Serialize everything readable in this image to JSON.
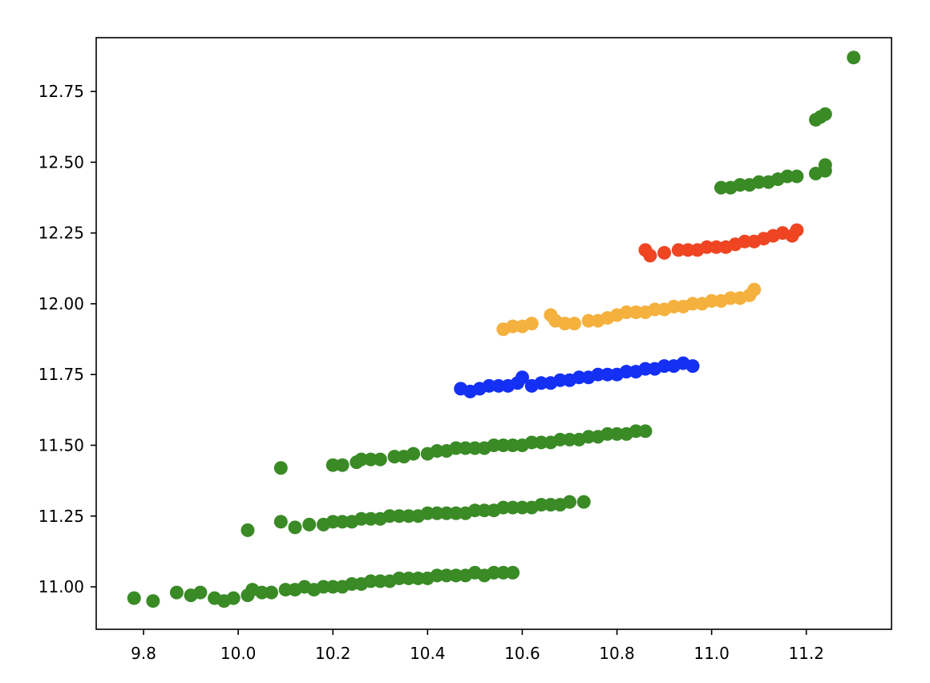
{
  "chart_data": {
    "type": "scatter",
    "title": "",
    "xlabel": "",
    "ylabel": "",
    "xlim": [
      9.7,
      11.38
    ],
    "ylim": [
      10.85,
      12.94
    ],
    "grid": false,
    "xticks": [
      9.8,
      10.0,
      10.2,
      10.4,
      10.6,
      10.8,
      11.0,
      11.2
    ],
    "xtick_labels": [
      "9.8",
      "10.0",
      "10.2",
      "10.4",
      "10.6",
      "10.8",
      "11.0",
      "11.2"
    ],
    "yticks": [
      11.0,
      11.25,
      11.5,
      11.75,
      12.0,
      12.25,
      12.5,
      12.75
    ],
    "ytick_labels": [
      "11.00",
      "11.25",
      "11.50",
      "11.75",
      "12.00",
      "12.25",
      "12.50",
      "12.75"
    ],
    "series": [
      {
        "color": "#3a8a26",
        "points": [
          [
            9.78,
            10.96
          ],
          [
            9.82,
            10.95
          ],
          [
            9.87,
            10.98
          ],
          [
            9.9,
            10.97
          ],
          [
            9.92,
            10.98
          ],
          [
            9.95,
            10.96
          ],
          [
            9.97,
            10.95
          ],
          [
            9.99,
            10.96
          ],
          [
            10.02,
            10.97
          ],
          [
            10.03,
            10.99
          ],
          [
            10.05,
            10.98
          ],
          [
            10.07,
            10.98
          ],
          [
            10.1,
            10.99
          ],
          [
            10.12,
            10.99
          ],
          [
            10.14,
            11.0
          ],
          [
            10.16,
            10.99
          ],
          [
            10.18,
            11.0
          ],
          [
            10.2,
            11.0
          ],
          [
            10.22,
            11.0
          ],
          [
            10.24,
            11.01
          ],
          [
            10.26,
            11.01
          ],
          [
            10.28,
            11.02
          ],
          [
            10.3,
            11.02
          ],
          [
            10.32,
            11.02
          ],
          [
            10.34,
            11.03
          ],
          [
            10.36,
            11.03
          ],
          [
            10.38,
            11.03
          ],
          [
            10.4,
            11.03
          ],
          [
            10.42,
            11.04
          ],
          [
            10.44,
            11.04
          ],
          [
            10.46,
            11.04
          ],
          [
            10.48,
            11.04
          ],
          [
            10.5,
            11.05
          ],
          [
            10.52,
            11.04
          ],
          [
            10.54,
            11.05
          ],
          [
            10.56,
            11.05
          ],
          [
            10.58,
            11.05
          ],
          [
            10.02,
            11.2
          ],
          [
            10.09,
            11.23
          ],
          [
            10.12,
            11.21
          ],
          [
            10.15,
            11.22
          ],
          [
            10.18,
            11.22
          ],
          [
            10.2,
            11.23
          ],
          [
            10.22,
            11.23
          ],
          [
            10.24,
            11.23
          ],
          [
            10.26,
            11.24
          ],
          [
            10.28,
            11.24
          ],
          [
            10.3,
            11.24
          ],
          [
            10.32,
            11.25
          ],
          [
            10.34,
            11.25
          ],
          [
            10.36,
            11.25
          ],
          [
            10.38,
            11.25
          ],
          [
            10.4,
            11.26
          ],
          [
            10.42,
            11.26
          ],
          [
            10.44,
            11.26
          ],
          [
            10.46,
            11.26
          ],
          [
            10.48,
            11.26
          ],
          [
            10.5,
            11.27
          ],
          [
            10.52,
            11.27
          ],
          [
            10.54,
            11.27
          ],
          [
            10.56,
            11.28
          ],
          [
            10.58,
            11.28
          ],
          [
            10.6,
            11.28
          ],
          [
            10.62,
            11.28
          ],
          [
            10.64,
            11.29
          ],
          [
            10.66,
            11.29
          ],
          [
            10.68,
            11.29
          ],
          [
            10.7,
            11.3
          ],
          [
            10.73,
            11.3
          ],
          [
            10.09,
            11.42
          ],
          [
            10.2,
            11.43
          ],
          [
            10.22,
            11.43
          ],
          [
            10.25,
            11.44
          ],
          [
            10.26,
            11.45
          ],
          [
            10.28,
            11.45
          ],
          [
            10.3,
            11.45
          ],
          [
            10.33,
            11.46
          ],
          [
            10.35,
            11.46
          ],
          [
            10.37,
            11.47
          ],
          [
            10.4,
            11.47
          ],
          [
            10.42,
            11.48
          ],
          [
            10.44,
            11.48
          ],
          [
            10.46,
            11.49
          ],
          [
            10.48,
            11.49
          ],
          [
            10.5,
            11.49
          ],
          [
            10.52,
            11.49
          ],
          [
            10.54,
            11.5
          ],
          [
            10.56,
            11.5
          ],
          [
            10.58,
            11.5
          ],
          [
            10.6,
            11.5
          ],
          [
            10.62,
            11.51
          ],
          [
            10.64,
            11.51
          ],
          [
            10.66,
            11.51
          ],
          [
            10.68,
            11.52
          ],
          [
            10.7,
            11.52
          ],
          [
            10.72,
            11.52
          ],
          [
            10.74,
            11.53
          ],
          [
            10.76,
            11.53
          ],
          [
            10.78,
            11.54
          ],
          [
            10.8,
            11.54
          ],
          [
            10.82,
            11.54
          ],
          [
            10.84,
            11.55
          ],
          [
            10.86,
            11.55
          ],
          [
            11.02,
            12.41
          ],
          [
            11.04,
            12.41
          ],
          [
            11.06,
            12.42
          ],
          [
            11.08,
            12.42
          ],
          [
            11.1,
            12.43
          ],
          [
            11.12,
            12.43
          ],
          [
            11.14,
            12.44
          ],
          [
            11.16,
            12.45
          ],
          [
            11.18,
            12.45
          ],
          [
            11.22,
            12.46
          ],
          [
            11.24,
            12.47
          ],
          [
            11.24,
            12.49
          ],
          [
            11.22,
            12.65
          ],
          [
            11.23,
            12.66
          ],
          [
            11.24,
            12.67
          ],
          [
            11.3,
            12.87
          ]
        ]
      },
      {
        "color": "#1430f5",
        "points": [
          [
            10.47,
            11.7
          ],
          [
            10.49,
            11.69
          ],
          [
            10.51,
            11.7
          ],
          [
            10.53,
            11.71
          ],
          [
            10.55,
            11.71
          ],
          [
            10.57,
            11.71
          ],
          [
            10.59,
            11.72
          ],
          [
            10.6,
            11.74
          ],
          [
            10.62,
            11.71
          ],
          [
            10.64,
            11.72
          ],
          [
            10.66,
            11.72
          ],
          [
            10.68,
            11.73
          ],
          [
            10.7,
            11.73
          ],
          [
            10.72,
            11.74
          ],
          [
            10.74,
            11.74
          ],
          [
            10.76,
            11.75
          ],
          [
            10.78,
            11.75
          ],
          [
            10.8,
            11.75
          ],
          [
            10.82,
            11.76
          ],
          [
            10.84,
            11.76
          ],
          [
            10.86,
            11.77
          ],
          [
            10.88,
            11.77
          ],
          [
            10.9,
            11.78
          ],
          [
            10.92,
            11.78
          ],
          [
            10.94,
            11.79
          ],
          [
            10.96,
            11.78
          ]
        ]
      },
      {
        "color": "#f5b13d",
        "points": [
          [
            10.56,
            11.91
          ],
          [
            10.58,
            11.92
          ],
          [
            10.6,
            11.92
          ],
          [
            10.62,
            11.93
          ],
          [
            10.66,
            11.96
          ],
          [
            10.67,
            11.94
          ],
          [
            10.69,
            11.93
          ],
          [
            10.71,
            11.93
          ],
          [
            10.74,
            11.94
          ],
          [
            10.76,
            11.94
          ],
          [
            10.78,
            11.95
          ],
          [
            10.8,
            11.96
          ],
          [
            10.82,
            11.97
          ],
          [
            10.84,
            11.97
          ],
          [
            10.86,
            11.97
          ],
          [
            10.88,
            11.98
          ],
          [
            10.9,
            11.98
          ],
          [
            10.92,
            11.99
          ],
          [
            10.94,
            11.99
          ],
          [
            10.96,
            12.0
          ],
          [
            10.98,
            12.0
          ],
          [
            11.0,
            12.01
          ],
          [
            11.02,
            12.01
          ],
          [
            11.04,
            12.02
          ],
          [
            11.06,
            12.02
          ],
          [
            11.08,
            12.03
          ],
          [
            11.09,
            12.05
          ]
        ]
      },
      {
        "color": "#ef4523",
        "points": [
          [
            10.86,
            12.19
          ],
          [
            10.87,
            12.17
          ],
          [
            10.9,
            12.18
          ],
          [
            10.93,
            12.19
          ],
          [
            10.95,
            12.19
          ],
          [
            10.97,
            12.19
          ],
          [
            10.99,
            12.2
          ],
          [
            11.01,
            12.2
          ],
          [
            11.03,
            12.2
          ],
          [
            11.05,
            12.21
          ],
          [
            11.07,
            12.22
          ],
          [
            11.09,
            12.22
          ],
          [
            11.11,
            12.23
          ],
          [
            11.13,
            12.24
          ],
          [
            11.15,
            12.25
          ],
          [
            11.17,
            12.24
          ],
          [
            11.18,
            12.26
          ]
        ]
      }
    ]
  }
}
